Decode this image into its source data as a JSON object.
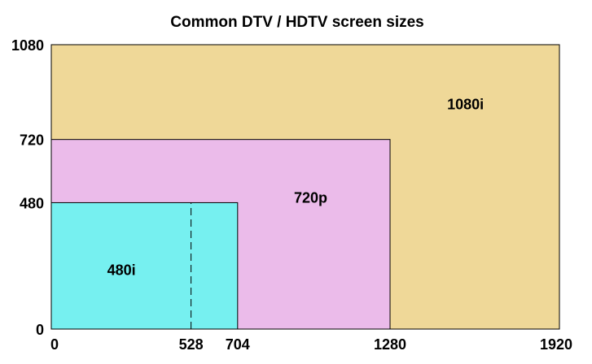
{
  "title": "Common DTV / HDTV screen sizes",
  "x_ticks": [
    "0",
    "528",
    "704",
    "1280",
    "1920"
  ],
  "y_ticks": [
    "0",
    "480",
    "720",
    "1080"
  ],
  "colors": {
    "1080i": "#efd898",
    "720p": "#ebbbea",
    "480i": "#76f0f0",
    "outline": "#000000",
    "background": "#ffffff"
  },
  "chart_data": {
    "type": "area",
    "title": "Common DTV / HDTV screen sizes",
    "x_range": [
      0,
      1920
    ],
    "y_range": [
      0,
      1080
    ],
    "x_ticks": [
      0,
      528,
      704,
      1280,
      1920
    ],
    "y_ticks": [
      0,
      480,
      720,
      1080
    ],
    "rectangles": [
      {
        "label": "1080i",
        "width": 1920,
        "height": 1080,
        "color": "#efd898"
      },
      {
        "label": "720p",
        "width": 1280,
        "height": 720,
        "color": "#ebbbea"
      },
      {
        "label": "480i",
        "width": 704,
        "height": 480,
        "color": "#76f0f0"
      }
    ],
    "dashed_line": {
      "x": 528,
      "from_y": 0,
      "to_y": 480
    }
  }
}
